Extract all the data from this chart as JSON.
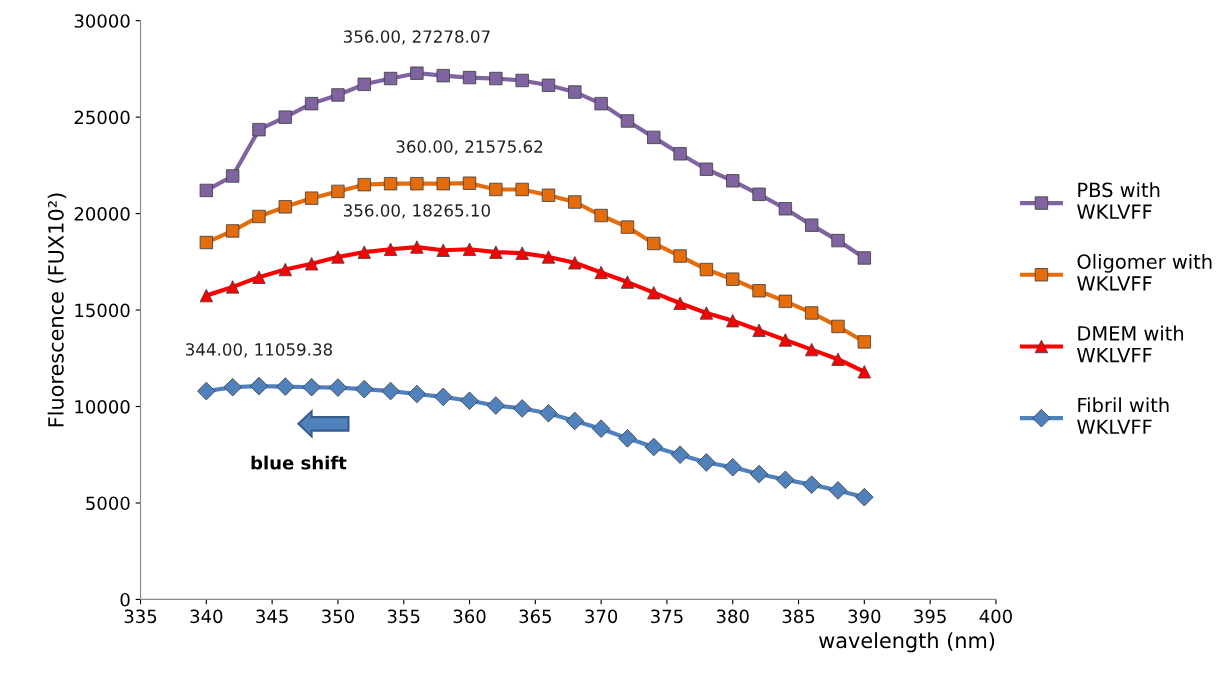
{
  "chart_data": {
    "type": "line",
    "xlabel": "wavelength (nm)",
    "ylabel": "Fluorescence (FUX10²)",
    "x": [
      340,
      342,
      344,
      346,
      348,
      350,
      352,
      354,
      356,
      358,
      360,
      362,
      364,
      366,
      368,
      370,
      372,
      374,
      376,
      378,
      380,
      382,
      384,
      386,
      388,
      390
    ],
    "series": [
      {
        "name": "PBS with WKLVFF",
        "color": "#8064a2",
        "marker": "square",
        "values": [
          21200,
          21950,
          24350,
          25000,
          25700,
          26150,
          26700,
          27000,
          27278.07,
          27150,
          27050,
          27000,
          26900,
          26650,
          26300,
          25700,
          24800,
          23950,
          23100,
          22300,
          21700,
          21000,
          20250,
          19400,
          18600,
          17700
        ]
      },
      {
        "name": "Oligomer with WKLVFF",
        "color": "#e46c0a",
        "marker": "square",
        "values": [
          18500,
          19100,
          19850,
          20350,
          20800,
          21150,
          21500,
          21550,
          21550,
          21550,
          21575.62,
          21250,
          21250,
          20950,
          20600,
          19900,
          19300,
          18450,
          17800,
          17100,
          16600,
          16000,
          15450,
          14850,
          14150,
          13350
        ]
      },
      {
        "name": "DMEM with WKLVFF",
        "color": "#ff0000",
        "marker": "triangle",
        "values": [
          15750,
          16200,
          16700,
          17100,
          17400,
          17750,
          18000,
          18150,
          18265.1,
          18100,
          18150,
          18000,
          17950,
          17750,
          17450,
          16950,
          16450,
          15900,
          15350,
          14850,
          14450,
          13950,
          13450,
          12950,
          12450,
          11800
        ]
      },
      {
        "name": "Fibril with WKLVFF",
        "color": "#4f81bd",
        "marker": "diamond",
        "values": [
          10800,
          11000,
          11059.38,
          11030,
          11000,
          10980,
          10900,
          10800,
          10650,
          10500,
          10300,
          10050,
          9900,
          9650,
          9250,
          8850,
          8350,
          7900,
          7500,
          7100,
          6850,
          6500,
          6200,
          5950,
          5650,
          5300
        ]
      }
    ],
    "annotations": [
      {
        "text": "356.00, 27278.07",
        "x": 356,
        "y": 27278.07
      },
      {
        "text": "360.00, 21575.62",
        "x": 360,
        "y": 21575.62
      },
      {
        "text": "356.00, 18265.10",
        "x": 356,
        "y": 18265.1
      },
      {
        "text": "344.00, 11059.38",
        "x": 344,
        "y": 11059.38
      },
      "blue shift"
    ],
    "xlim": [
      335,
      400
    ],
    "xticks": [
      335,
      340,
      345,
      350,
      355,
      360,
      365,
      370,
      375,
      380,
      385,
      390,
      395,
      400
    ],
    "ylim": [
      0,
      30000
    ],
    "yticks": [
      0,
      5000,
      10000,
      15000,
      20000,
      25000,
      30000
    ],
    "grid": false,
    "legend": "right",
    "line_style": "solid"
  }
}
